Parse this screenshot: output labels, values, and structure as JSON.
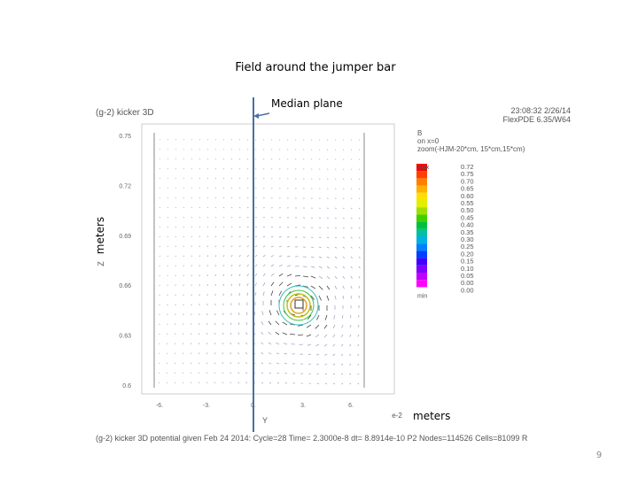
{
  "slide": {
    "title": "Field around the jumper bar",
    "annotation": "Median plane",
    "y_axis_note": "meters",
    "x_axis_note": "meters",
    "page_number": "9"
  },
  "plot": {
    "title": "(g-2) kicker 3D",
    "timestamp": "23:08:32 2/26/14",
    "software": "FlexPDE 6.35/W64",
    "legend_header": [
      "B",
      "on x=0",
      "zoom(-HJM-20*cm, 15*cm,15*cm)"
    ],
    "colorbar_labels": [
      {
        "key": "max",
        "value": "0.72"
      },
      {
        "key": "",
        "value": "0.75"
      },
      {
        "key": "",
        "value": "0.70"
      },
      {
        "key": "",
        "value": "0.65"
      },
      {
        "key": "",
        "value": "0.60"
      },
      {
        "key": "",
        "value": "0.55"
      },
      {
        "key": "",
        "value": "0.50"
      },
      {
        "key": "",
        "value": "0.45"
      },
      {
        "key": "",
        "value": "0.40"
      },
      {
        "key": "",
        "value": "0.35"
      },
      {
        "key": "",
        "value": "0.30"
      },
      {
        "key": "",
        "value": "0.25"
      },
      {
        "key": "",
        "value": "0.20"
      },
      {
        "key": "",
        "value": "0.15"
      },
      {
        "key": "",
        "value": "0.10"
      },
      {
        "key": "",
        "value": "0.05"
      },
      {
        "key": "",
        "value": "0.00"
      },
      {
        "key": "min",
        "value": "0.00"
      }
    ],
    "y_ticks": [
      "0.75",
      "0.72",
      "0.69",
      "0.66",
      "0.63",
      "0.6"
    ],
    "x_ticks": [
      "-6.",
      "-3.",
      "0.",
      "3.",
      "6."
    ],
    "x_axis_label": "Y",
    "y_axis_label": "Z",
    "x_exponent": "e-2",
    "footer": "(g-2) kicker 3D potential given Feb 24 2014:  Cycle=28  Time= 2.3000e-8  dt= 8.8914e-10  P2  Nodes=114526  Cells=81099  R"
  }
}
